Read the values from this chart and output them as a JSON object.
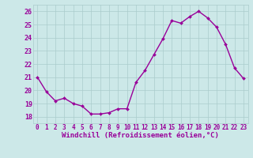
{
  "x": [
    0,
    1,
    2,
    3,
    4,
    5,
    6,
    7,
    8,
    9,
    10,
    11,
    12,
    13,
    14,
    15,
    16,
    17,
    18,
    19,
    20,
    21,
    22,
    23
  ],
  "y": [
    21.0,
    19.9,
    19.2,
    19.4,
    19.0,
    18.8,
    18.2,
    18.2,
    18.3,
    18.6,
    18.6,
    20.6,
    21.5,
    22.7,
    23.9,
    25.3,
    25.1,
    25.6,
    26.0,
    25.5,
    24.8,
    23.5,
    21.7,
    20.9
  ],
  "line_color": "#990099",
  "marker": "D",
  "marker_size": 2.0,
  "bg_color": "#cce8e8",
  "grid_color": "#aacccc",
  "xlabel": "Windchill (Refroidissement éolien,°C)",
  "xlabel_color": "#990099",
  "tick_color": "#990099",
  "ylim": [
    17.5,
    26.5
  ],
  "xlim": [
    -0.5,
    23.5
  ],
  "yticks": [
    18,
    19,
    20,
    21,
    22,
    23,
    24,
    25,
    26
  ],
  "xticks": [
    0,
    1,
    2,
    3,
    4,
    5,
    6,
    7,
    8,
    9,
    10,
    11,
    12,
    13,
    14,
    15,
    16,
    17,
    18,
    19,
    20,
    21,
    22,
    23
  ],
  "line_width": 1.0,
  "title_fontsize": 7,
  "xlabel_fontsize": 6.5,
  "tick_fontsize": 5.5,
  "ytick_fontsize": 6.0
}
